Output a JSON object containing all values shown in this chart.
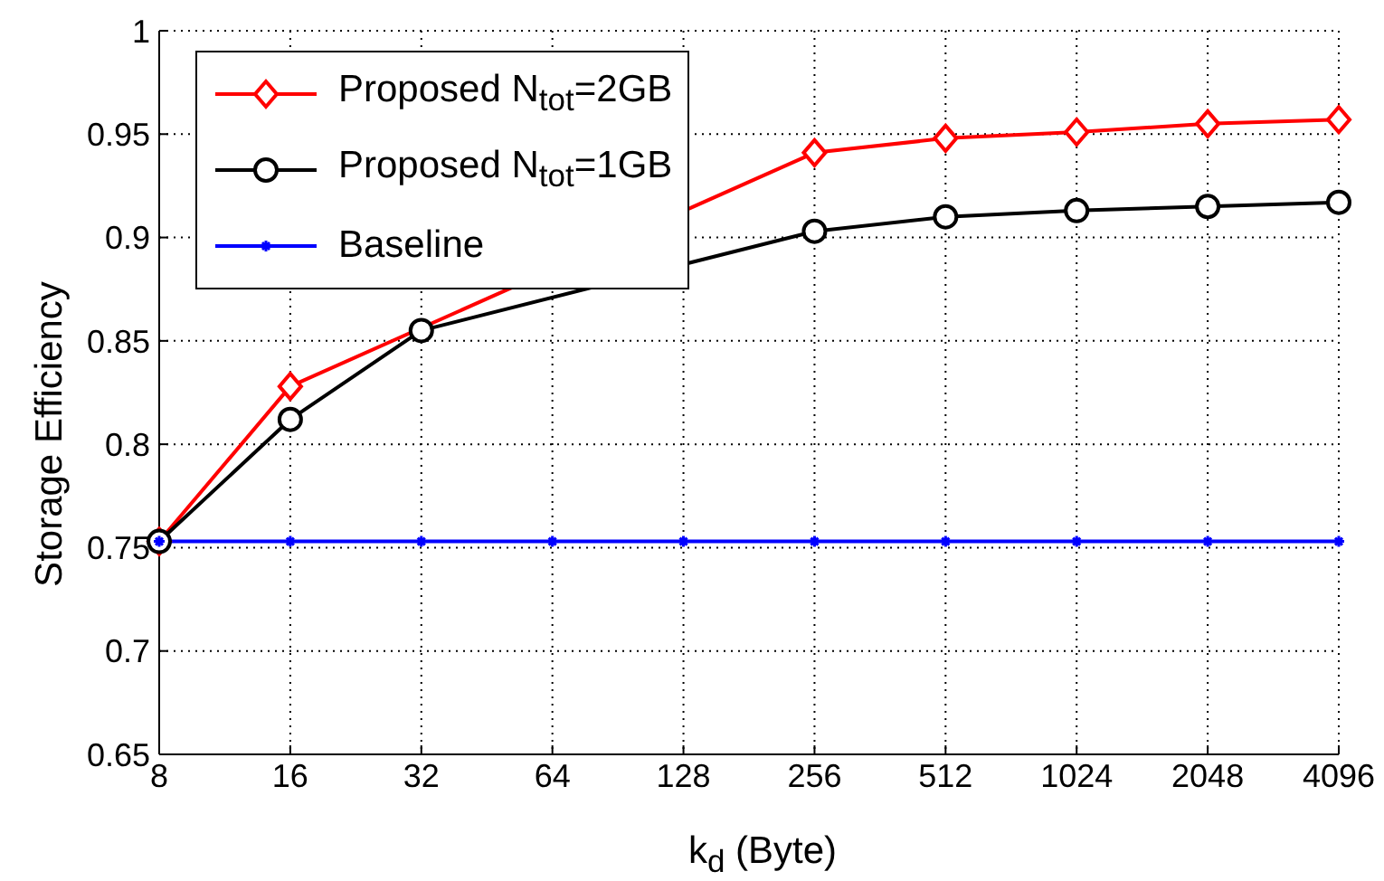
{
  "chart_data": {
    "type": "line",
    "xlabel": "k$_{d}$ (Byte)",
    "ylabel": "Storage Efficiency",
    "categories": [
      "8",
      "16",
      "32",
      "64",
      "128",
      "256",
      "512",
      "1024",
      "2048",
      "4096"
    ],
    "series": [
      {
        "name": "Proposed N$_{tot}$=2GB",
        "color": "#ff0000",
        "marker": "diamond",
        "values": [
          0.753,
          0.828,
          null,
          null,
          null,
          0.941,
          0.948,
          0.951,
          0.955,
          0.957
        ]
      },
      {
        "name": "Proposed N$_{tot}$=1GB",
        "color": "#000000",
        "marker": "circle",
        "values": [
          0.753,
          0.812,
          0.855,
          null,
          null,
          0.903,
          0.91,
          0.913,
          0.915,
          0.917
        ]
      },
      {
        "name": "Baseline",
        "color": "#0000ff",
        "marker": "cross",
        "values": [
          0.753,
          0.753,
          0.753,
          0.753,
          0.753,
          0.753,
          0.753,
          0.753,
          0.753,
          0.753
        ]
      }
    ],
    "ylim": [
      0.65,
      1
    ],
    "yticks": [
      0.65,
      0.7,
      0.75,
      0.8,
      0.85,
      0.9,
      0.95,
      1
    ],
    "grid": true,
    "legend": "top left",
    "line_style": "solid"
  }
}
